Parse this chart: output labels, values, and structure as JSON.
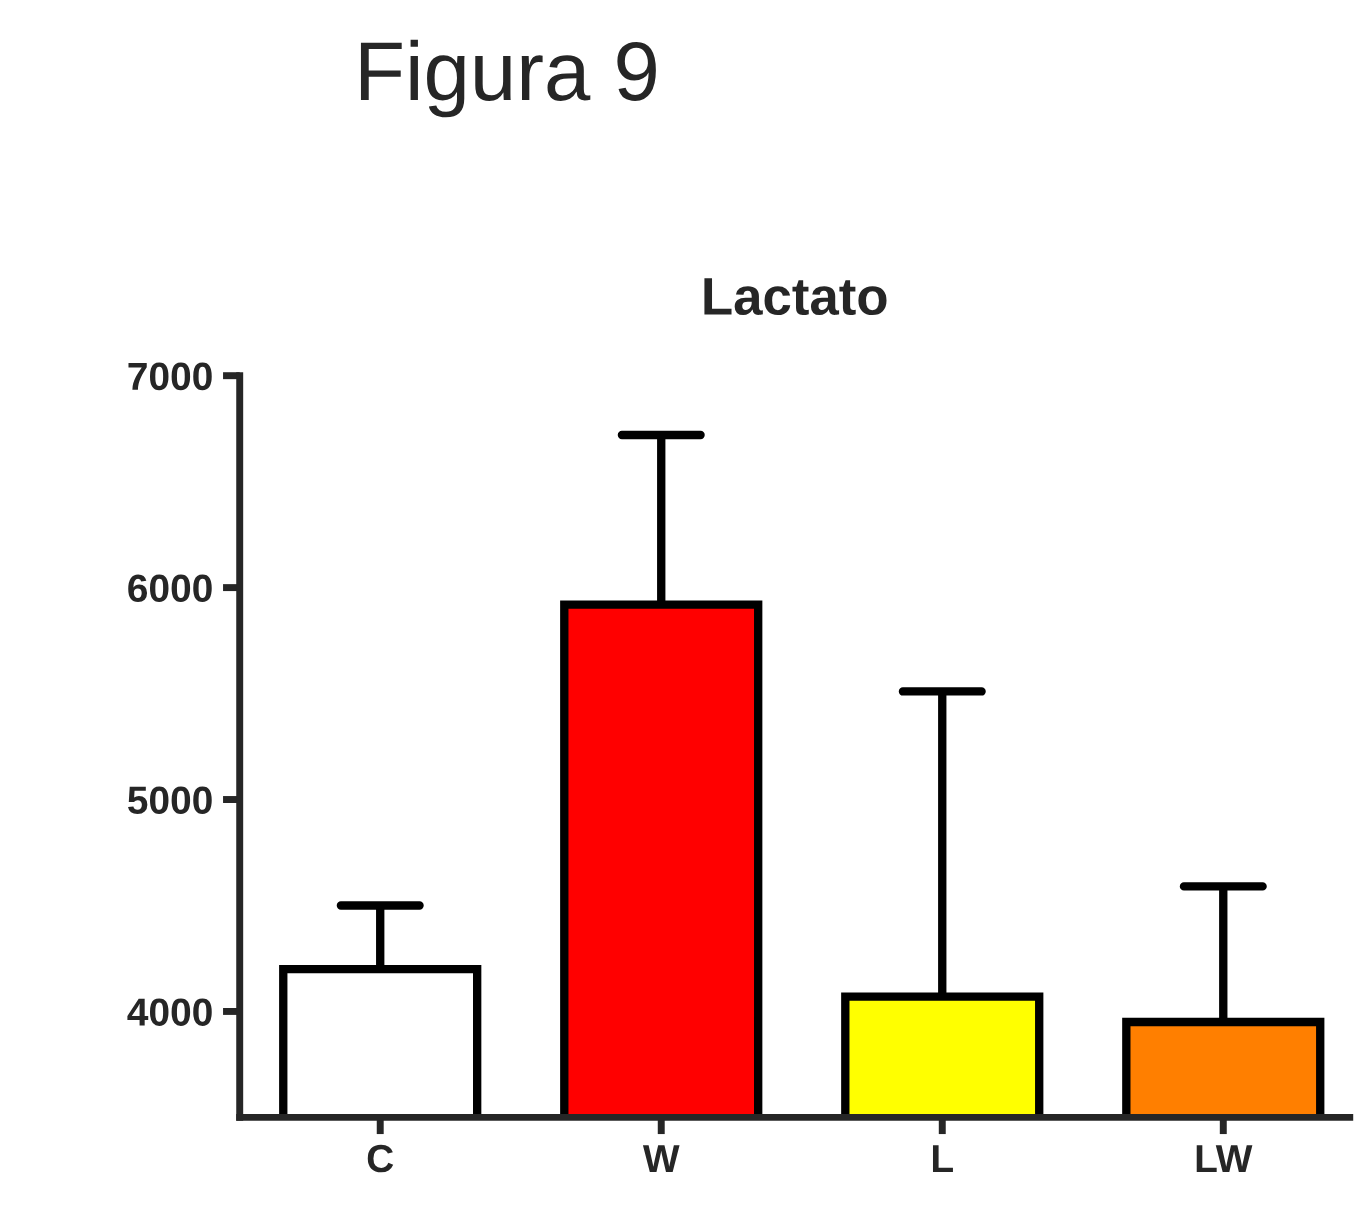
{
  "chart_data": {
    "type": "bar",
    "title": "Lactato",
    "subtitle": "Figura 9",
    "categories": [
      "C",
      "W",
      "L",
      "LW"
    ],
    "values": [
      4200,
      5920,
      4070,
      3950
    ],
    "colors": [
      "#ffffff",
      "#ff0000",
      "#ffff00",
      "#ff7f00"
    ],
    "errors": [
      [
        4200,
        4500
      ],
      [
        5920,
        6720
      ],
      [
        4070,
        5510
      ],
      [
        3950,
        4590
      ]
    ],
    "ylim": [
      3500,
      7000
    ],
    "yticks": [
      4000,
      5000,
      6000,
      7000
    ],
    "grid": false,
    "legend": false
  }
}
